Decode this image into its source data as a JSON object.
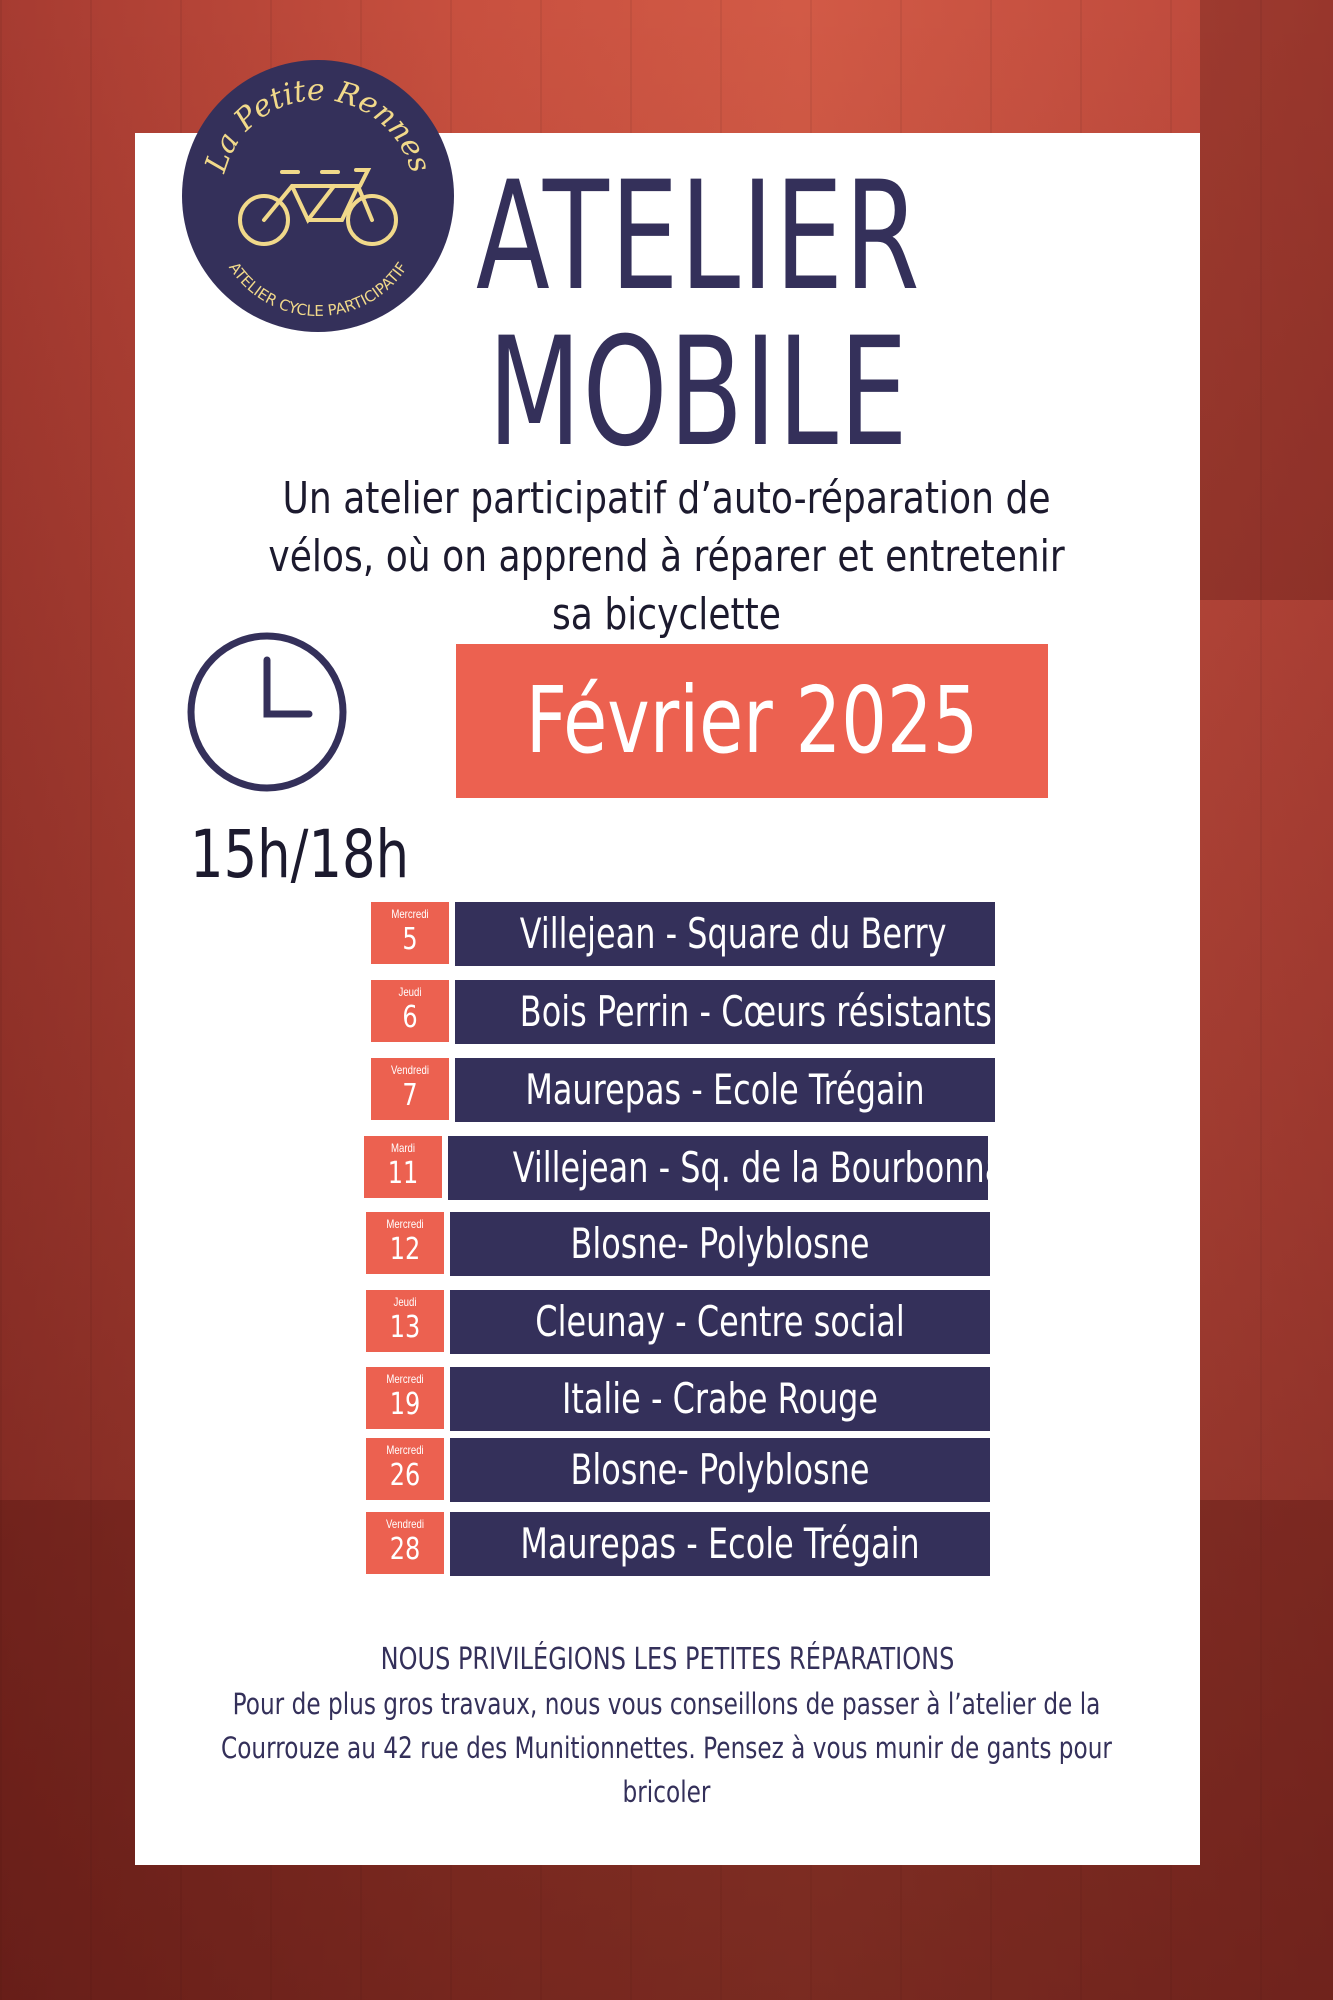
{
  "logo": {
    "name": "La Petite Rennes",
    "tagline": "ATELIER CYCLE PARTICIPATIF",
    "icon": "tandem-bicycle-icon"
  },
  "title": {
    "line1": "ATELIER",
    "line2": "MOBILE"
  },
  "subtitle": "Un atelier participatif d’auto-réparation de vélos, où on apprend à réparer et entretenir sa bicyclette",
  "hours": "15h/18h",
  "month": "Février 2025",
  "colors": {
    "navy": "#34305a",
    "coral": "#ec6150",
    "background": "#c8503f"
  },
  "schedule": [
    {
      "day": "Mercredi",
      "date": "5",
      "place": "Villejean - Square du Berry"
    },
    {
      "day": "Jeudi",
      "date": "6",
      "place": "Bois Perrin - Cœurs résistants"
    },
    {
      "day": "Vendredi",
      "date": "7",
      "place": "Maurepas -  Ecole Trégain"
    },
    {
      "day": "Mardi",
      "date": "11",
      "place": "Villejean - Sq. de la Bourbonnais"
    },
    {
      "day": "Mercredi",
      "date": "12",
      "place": "Blosne- Polyblosne"
    },
    {
      "day": "Jeudi",
      "date": "13",
      "place": "Cleunay - Centre social"
    },
    {
      "day": "Mercredi",
      "date": "19",
      "place": "Italie - Crabe Rouge"
    },
    {
      "day": "Mercredi",
      "date": "26",
      "place": "Blosne- Polyblosne"
    },
    {
      "day": "Vendredi",
      "date": "28",
      "place": "Maurepas -  Ecole Trégain"
    }
  ],
  "footer": {
    "heading": "NOUS PRIVILÉGIONS LES PETITES RÉPARATIONS",
    "line1": "Pour de plus gros travaux, nous vous conseillons de passer à l’atelier de la",
    "line2": "Courrouze au 42 rue des Munitionnettes. Pensez à vous munir de gants pour bricoler"
  }
}
